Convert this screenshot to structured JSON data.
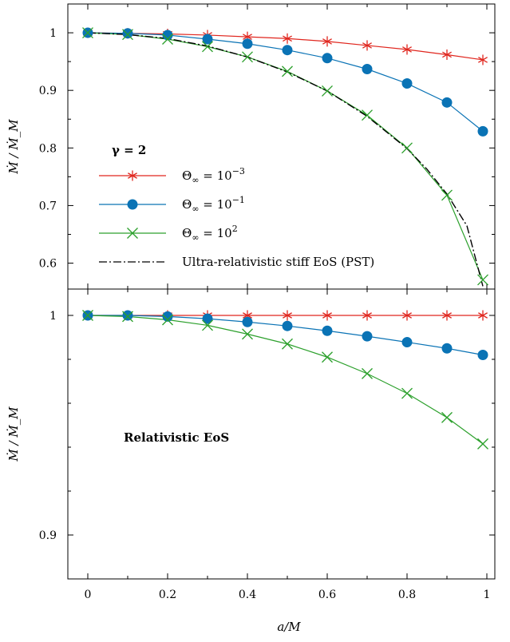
{
  "chart_data": [
    {
      "type": "line",
      "panel": "top",
      "annotation": "γ = 2",
      "ylabel": "Ṁ / Ṁ_M",
      "xlim": [
        -0.05,
        1.02
      ],
      "ylim": [
        0.555,
        1.05
      ],
      "yticks": [
        0.6,
        0.7,
        0.8,
        0.9,
        1
      ],
      "ytick_labels": [
        "0.6",
        "0.7",
        "0.8",
        "0.9",
        "1"
      ],
      "legend_position": "lower-left",
      "x": [
        0,
        0.1,
        0.2,
        0.3,
        0.4,
        0.5,
        0.6,
        0.7,
        0.8,
        0.9,
        0.99
      ],
      "series": [
        {
          "name": "Θ∞ = 10⁻³",
          "name_base": "Θ",
          "name_sub": "∞",
          "name_eq": " = 10",
          "name_sup": "−3",
          "color": "#e0261e",
          "marker": "asterisk",
          "values": [
            1.0,
            0.999,
            0.998,
            0.996,
            0.993,
            0.99,
            0.985,
            0.978,
            0.971,
            0.962,
            0.953
          ]
        },
        {
          "name": "Θ∞ = 10⁻¹",
          "name_base": "Θ",
          "name_sub": "∞",
          "name_eq": " = 10",
          "name_sup": "−1",
          "color": "#0a73b5",
          "marker": "circle",
          "values": [
            1.0,
            0.999,
            0.996,
            0.989,
            0.981,
            0.97,
            0.956,
            0.937,
            0.912,
            0.879,
            0.829
          ]
        },
        {
          "name": "Θ∞ = 10²",
          "name_base": "Θ",
          "name_sub": "∞",
          "name_eq": " = 10",
          "name_sup": "2",
          "color": "#2ca02c",
          "marker": "x",
          "values": [
            1.0,
            0.997,
            0.989,
            0.976,
            0.958,
            0.933,
            0.899,
            0.857,
            0.8,
            0.718,
            0.571
          ]
        },
        {
          "name": "Ultra-relativistic stiff EoS (PST)",
          "color": "#000000",
          "marker": "none",
          "linestyle": "dash-dot",
          "x": [
            0,
            0.1,
            0.2,
            0.3,
            0.4,
            0.5,
            0.6,
            0.7,
            0.8,
            0.85,
            0.9,
            0.95,
            0.99
          ],
          "values": [
            1.0,
            0.997,
            0.99,
            0.977,
            0.958,
            0.932,
            0.899,
            0.855,
            0.799,
            0.763,
            0.72,
            0.665,
            0.56
          ]
        }
      ]
    },
    {
      "type": "line",
      "panel": "bottom",
      "annotation": "Relativistic EoS",
      "xlabel": "a/M",
      "ylabel": "Ṁ / Ṁ_M",
      "xlim": [
        -0.05,
        1.02
      ],
      "ylim": [
        0.88,
        1.012
      ],
      "yticks": [
        0.9,
        1
      ],
      "ytick_labels": [
        "0.9",
        "1"
      ],
      "xticks": [
        0,
        0.2,
        0.4,
        0.6,
        0.8,
        1
      ],
      "xtick_labels": [
        "0",
        "0.2",
        "0.4",
        "0.6",
        "0.8",
        "1"
      ],
      "x": [
        0,
        0.1,
        0.2,
        0.3,
        0.4,
        0.5,
        0.6,
        0.7,
        0.8,
        0.9,
        0.99
      ],
      "series": [
        {
          "name": "Θ∞ = 10⁻³",
          "color": "#e0261e",
          "marker": "asterisk",
          "values": [
            1.0,
            1.0,
            1.0,
            1.0,
            1.0,
            1.0,
            1.0,
            1.0,
            1.0,
            1.0,
            1.0
          ]
        },
        {
          "name": "Θ∞ = 10⁻¹",
          "color": "#0a73b5",
          "marker": "circle",
          "values": [
            1.0,
            1.0,
            0.9995,
            0.9985,
            0.997,
            0.9952,
            0.993,
            0.9905,
            0.9878,
            0.985,
            0.982
          ]
        },
        {
          "name": "Θ∞ = 10²",
          "color": "#2ca02c",
          "marker": "x",
          "values": [
            1.0,
            0.9995,
            0.998,
            0.9955,
            0.9915,
            0.987,
            0.981,
            0.9735,
            0.9645,
            0.9535,
            0.9415
          ]
        }
      ]
    }
  ]
}
